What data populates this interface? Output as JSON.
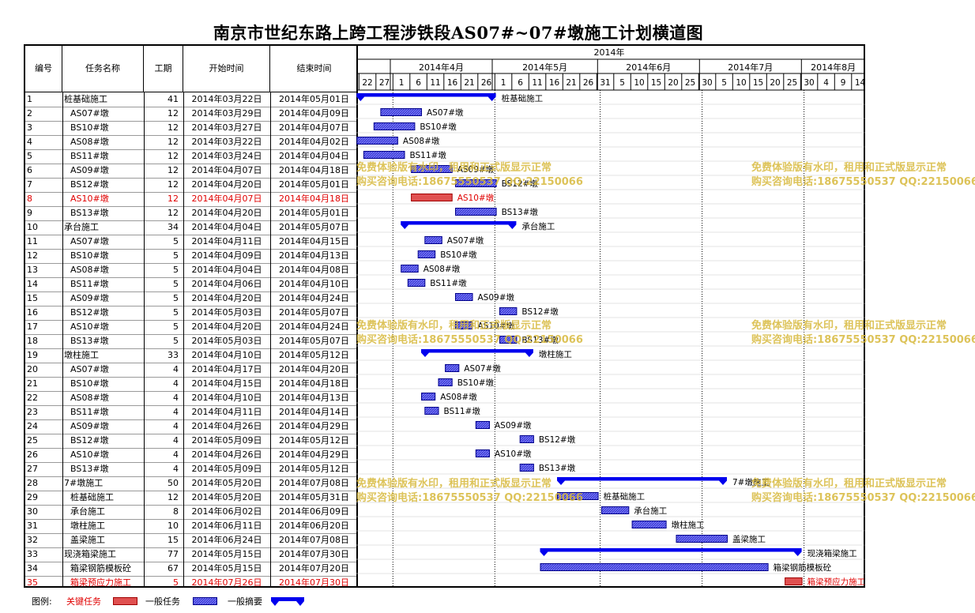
{
  "title": "南京市世纪东路上跨工程涉铁段AS07#~07#墩施工计划横道图",
  "headers": {
    "num": "编号",
    "name": "任务名称",
    "dur": "工期",
    "start": "开始时间",
    "end": "结束时间"
  },
  "timeline": {
    "year_label": "2014年",
    "months": [
      {
        "label": "2014年4月"
      },
      {
        "label": "2014年5月"
      },
      {
        "label": "2014年6月"
      },
      {
        "label": "2014年7月"
      },
      {
        "label": "2014年8月"
      }
    ],
    "days": [
      {
        "label": "22",
        "date": "2014-03-22"
      },
      {
        "label": "27",
        "date": "2014-03-27"
      },
      {
        "label": "1",
        "date": "2014-04-01"
      },
      {
        "label": "6",
        "date": "2014-04-06"
      },
      {
        "label": "11",
        "date": "2014-04-11"
      },
      {
        "label": "16",
        "date": "2014-04-16"
      },
      {
        "label": "21",
        "date": "2014-04-21"
      },
      {
        "label": "26",
        "date": "2014-04-26"
      },
      {
        "label": "1",
        "date": "2014-05-01"
      },
      {
        "label": "6",
        "date": "2014-05-06"
      },
      {
        "label": "11",
        "date": "2014-05-11"
      },
      {
        "label": "16",
        "date": "2014-05-16"
      },
      {
        "label": "21",
        "date": "2014-05-21"
      },
      {
        "label": "26",
        "date": "2014-05-26"
      },
      {
        "label": "31",
        "date": "2014-05-31"
      },
      {
        "label": "5",
        "date": "2014-06-05"
      },
      {
        "label": "10",
        "date": "2014-06-10"
      },
      {
        "label": "15",
        "date": "2014-06-15"
      },
      {
        "label": "20",
        "date": "2014-06-20"
      },
      {
        "label": "25",
        "date": "2014-06-25"
      },
      {
        "label": "30",
        "date": "2014-06-30"
      },
      {
        "label": "5",
        "date": "2014-07-05"
      },
      {
        "label": "10",
        "date": "2014-07-10"
      },
      {
        "label": "15",
        "date": "2014-07-15"
      },
      {
        "label": "20",
        "date": "2014-07-20"
      },
      {
        "label": "25",
        "date": "2014-07-25"
      },
      {
        "label": "30",
        "date": "2014-07-30"
      },
      {
        "label": "4",
        "date": "2014-08-04"
      },
      {
        "label": "9",
        "date": "2014-08-09"
      },
      {
        "label": "14",
        "date": "2014-08-14"
      }
    ]
  },
  "chart_data": {
    "type": "gantt",
    "x_range": [
      "2014-03-21",
      "2014-08-19"
    ],
    "milestone_dates": [
      "2014-04-01",
      "2014-05-01",
      "2014-06-01",
      "2014-07-01"
    ],
    "tasks": [
      {
        "id": "1",
        "name": "桩基础施工",
        "dur": "41",
        "start": "2014年03月22日",
        "end": "2014年05月01日",
        "s": "2014-03-22",
        "e": "2014-05-01",
        "kind": "summary",
        "level": 0
      },
      {
        "id": "2",
        "name": "AS07#墩",
        "dur": "12",
        "start": "2014年03月29日",
        "end": "2014年04月09日",
        "s": "2014-03-29",
        "e": "2014-04-09",
        "kind": "normal",
        "level": 1
      },
      {
        "id": "3",
        "name": "BS10#墩",
        "dur": "12",
        "start": "2014年03月27日",
        "end": "2014年04月07日",
        "s": "2014-03-27",
        "e": "2014-04-07",
        "kind": "normal",
        "level": 1
      },
      {
        "id": "4",
        "name": "AS08#墩",
        "dur": "12",
        "start": "2014年03月22日",
        "end": "2014年04月02日",
        "s": "2014-03-22",
        "e": "2014-04-02",
        "kind": "normal",
        "level": 1
      },
      {
        "id": "5",
        "name": "BS11#墩",
        "dur": "12",
        "start": "2014年03月24日",
        "end": "2014年04月04日",
        "s": "2014-03-24",
        "e": "2014-04-04",
        "kind": "normal",
        "level": 1
      },
      {
        "id": "6",
        "name": "AS09#墩",
        "dur": "12",
        "start": "2014年04月07日",
        "end": "2014年04月18日",
        "s": "2014-04-07",
        "e": "2014-04-18",
        "kind": "normal",
        "level": 1
      },
      {
        "id": "7",
        "name": "BS12#墩",
        "dur": "12",
        "start": "2014年04月20日",
        "end": "2014年05月01日",
        "s": "2014-04-20",
        "e": "2014-05-01",
        "kind": "normal",
        "level": 1
      },
      {
        "id": "8",
        "name": "AS10#墩",
        "dur": "12",
        "start": "2014年04月07日",
        "end": "2014年04月18日",
        "s": "2014-04-07",
        "e": "2014-04-18",
        "kind": "critical",
        "level": 1
      },
      {
        "id": "9",
        "name": "BS13#墩",
        "dur": "12",
        "start": "2014年04月20日",
        "end": "2014年05月01日",
        "s": "2014-04-20",
        "e": "2014-05-01",
        "kind": "normal",
        "level": 1
      },
      {
        "id": "10",
        "name": "承台施工",
        "dur": "34",
        "start": "2014年04月04日",
        "end": "2014年05月07日",
        "s": "2014-04-04",
        "e": "2014-05-07",
        "kind": "summary",
        "level": 0
      },
      {
        "id": "11",
        "name": "AS07#墩",
        "dur": "5",
        "start": "2014年04月11日",
        "end": "2014年04月15日",
        "s": "2014-04-11",
        "e": "2014-04-15",
        "kind": "normal",
        "level": 1
      },
      {
        "id": "12",
        "name": "BS10#墩",
        "dur": "5",
        "start": "2014年04月09日",
        "end": "2014年04月13日",
        "s": "2014-04-09",
        "e": "2014-04-13",
        "kind": "normal",
        "level": 1
      },
      {
        "id": "13",
        "name": "AS08#墩",
        "dur": "5",
        "start": "2014年04月04日",
        "end": "2014年04月08日",
        "s": "2014-04-04",
        "e": "2014-04-08",
        "kind": "normal",
        "level": 1
      },
      {
        "id": "14",
        "name": "BS11#墩",
        "dur": "5",
        "start": "2014年04月06日",
        "end": "2014年04月10日",
        "s": "2014-04-06",
        "e": "2014-04-10",
        "kind": "normal",
        "level": 1
      },
      {
        "id": "15",
        "name": "AS09#墩",
        "dur": "5",
        "start": "2014年04月20日",
        "end": "2014年04月24日",
        "s": "2014-04-20",
        "e": "2014-04-24",
        "kind": "normal",
        "level": 1
      },
      {
        "id": "16",
        "name": "BS12#墩",
        "dur": "5",
        "start": "2014年05月03日",
        "end": "2014年05月07日",
        "s": "2014-05-03",
        "e": "2014-05-07",
        "kind": "normal",
        "level": 1
      },
      {
        "id": "17",
        "name": "AS10#墩",
        "dur": "5",
        "start": "2014年04月20日",
        "end": "2014年04月24日",
        "s": "2014-04-20",
        "e": "2014-04-24",
        "kind": "normal",
        "level": 1
      },
      {
        "id": "18",
        "name": "BS13#墩",
        "dur": "5",
        "start": "2014年05月03日",
        "end": "2014年05月07日",
        "s": "2014-05-03",
        "e": "2014-05-07",
        "kind": "normal",
        "level": 1
      },
      {
        "id": "19",
        "name": "墩柱施工",
        "dur": "33",
        "start": "2014年04月10日",
        "end": "2014年05月12日",
        "s": "2014-04-10",
        "e": "2014-05-12",
        "kind": "summary",
        "level": 0
      },
      {
        "id": "20",
        "name": "AS07#墩",
        "dur": "4",
        "start": "2014年04月17日",
        "end": "2014年04月20日",
        "s": "2014-04-17",
        "e": "2014-04-20",
        "kind": "normal",
        "level": 1
      },
      {
        "id": "21",
        "name": "BS10#墩",
        "dur": "4",
        "start": "2014年04月15日",
        "end": "2014年04月18日",
        "s": "2014-04-15",
        "e": "2014-04-18",
        "kind": "normal",
        "level": 1
      },
      {
        "id": "22",
        "name": "AS08#墩",
        "dur": "4",
        "start": "2014年04月10日",
        "end": "2014年04月13日",
        "s": "2014-04-10",
        "e": "2014-04-13",
        "kind": "normal",
        "level": 1
      },
      {
        "id": "23",
        "name": "BS11#墩",
        "dur": "4",
        "start": "2014年04月11日",
        "end": "2014年04月14日",
        "s": "2014-04-11",
        "e": "2014-04-14",
        "kind": "normal",
        "level": 1
      },
      {
        "id": "24",
        "name": "AS09#墩",
        "dur": "4",
        "start": "2014年04月26日",
        "end": "2014年04月29日",
        "s": "2014-04-26",
        "e": "2014-04-29",
        "kind": "normal",
        "level": 1
      },
      {
        "id": "25",
        "name": "BS12#墩",
        "dur": "4",
        "start": "2014年05月09日",
        "end": "2014年05月12日",
        "s": "2014-05-09",
        "e": "2014-05-12",
        "kind": "normal",
        "level": 1
      },
      {
        "id": "26",
        "name": "AS10#墩",
        "dur": "4",
        "start": "2014年04月26日",
        "end": "2014年04月29日",
        "s": "2014-04-26",
        "e": "2014-04-29",
        "kind": "normal",
        "level": 1
      },
      {
        "id": "27",
        "name": "BS13#墩",
        "dur": "4",
        "start": "2014年05月09日",
        "end": "2014年05月12日",
        "s": "2014-05-09",
        "e": "2014-05-12",
        "kind": "normal",
        "level": 1
      },
      {
        "id": "28",
        "name": "7#墩施工",
        "dur": "50",
        "start": "2014年05月20日",
        "end": "2014年07月08日",
        "s": "2014-05-20",
        "e": "2014-07-08",
        "kind": "summary",
        "level": 0
      },
      {
        "id": "29",
        "name": "桩基础施工",
        "dur": "12",
        "start": "2014年05月20日",
        "end": "2014年05月31日",
        "s": "2014-05-20",
        "e": "2014-05-31",
        "kind": "normal",
        "level": 1
      },
      {
        "id": "30",
        "name": "承台施工",
        "dur": "8",
        "start": "2014年06月02日",
        "end": "2014年06月09日",
        "s": "2014-06-02",
        "e": "2014-06-09",
        "kind": "normal",
        "level": 1
      },
      {
        "id": "31",
        "name": "墩柱施工",
        "dur": "10",
        "start": "2014年06月11日",
        "end": "2014年06月20日",
        "s": "2014-06-11",
        "e": "2014-06-20",
        "kind": "normal",
        "level": 1
      },
      {
        "id": "32",
        "name": "盖梁施工",
        "dur": "15",
        "start": "2014年06月24日",
        "end": "2014年07月08日",
        "s": "2014-06-24",
        "e": "2014-07-08",
        "kind": "normal",
        "level": 1
      },
      {
        "id": "33",
        "name": "现浇箱梁施工",
        "dur": "77",
        "start": "2014年05月15日",
        "end": "2014年07月30日",
        "s": "2014-05-15",
        "e": "2014-07-30",
        "kind": "summary",
        "level": 0
      },
      {
        "id": "34",
        "name": "箱梁钢筋模板砼",
        "dur": "67",
        "start": "2014年05月15日",
        "end": "2014年07月20日",
        "s": "2014-05-15",
        "e": "2014-07-20",
        "kind": "normal",
        "level": 1
      },
      {
        "id": "35",
        "name": "箱梁预应力施工",
        "dur": "5",
        "start": "2014年07月26日",
        "end": "2014年07月30日",
        "s": "2014-07-26",
        "e": "2014-07-30",
        "kind": "critical",
        "level": 1
      }
    ]
  },
  "legend": {
    "prefix": "图例:",
    "critical": "关键任务",
    "normal": "一般任务",
    "summary": "一般摘要"
  },
  "watermark": {
    "line1": "免费体验版有水印，租用和正式版显示正常",
    "line2": "购买咨询电话:18675550537 QQ:22150066"
  },
  "colors": {
    "summary": "#0000ee",
    "normal_fill": "#3b3bd6",
    "normal_stroke": "#00008b",
    "critical_fill": "#e05050",
    "critical_stroke": "#a00000",
    "critical_text": "#e00000",
    "watermark": "#d7b93c"
  }
}
